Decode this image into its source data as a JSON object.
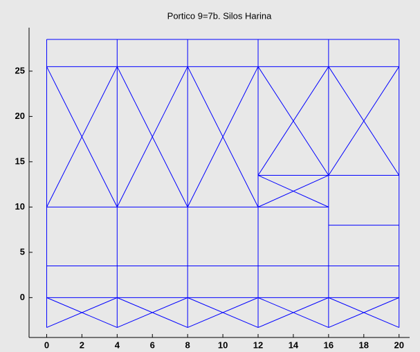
{
  "chart_data": {
    "type": "line",
    "title": "Portico 9=7b. Silos Harina",
    "color": "#0000ff",
    "xlim": [
      -1,
      20.6
    ],
    "xticks": [
      0,
      2,
      4,
      6,
      8,
      10,
      12,
      14,
      16,
      18,
      20
    ],
    "ylim": [
      -4.4,
      29.8
    ],
    "yticks": [
      0,
      5,
      10,
      15,
      20,
      25
    ],
    "series": [
      {
        "x": [
          0,
          0
        ],
        "values": [
          -3.3,
          28.5
        ]
      },
      {
        "x": [
          4,
          4
        ],
        "values": [
          -3.3,
          28.5
        ]
      },
      {
        "x": [
          8,
          8
        ],
        "values": [
          -3.3,
          28.5
        ]
      },
      {
        "x": [
          12,
          12
        ],
        "values": [
          -3.3,
          28.5
        ]
      },
      {
        "x": [
          16,
          16
        ],
        "values": [
          -3.3,
          28.5
        ]
      },
      {
        "x": [
          20,
          20
        ],
        "values": [
          -3.3,
          28.5
        ]
      },
      {
        "x": [
          0,
          20
        ],
        "values": [
          28.5,
          28.5
        ]
      },
      {
        "x": [
          0,
          20
        ],
        "values": [
          25.5,
          25.5
        ]
      },
      {
        "x": [
          0,
          16
        ],
        "values": [
          10,
          10
        ]
      },
      {
        "x": [
          12,
          20
        ],
        "values": [
          13.5,
          13.5
        ]
      },
      {
        "x": [
          16,
          20
        ],
        "values": [
          8,
          8
        ]
      },
      {
        "x": [
          0,
          20
        ],
        "values": [
          3.5,
          3.5
        ]
      },
      {
        "x": [
          0,
          20
        ],
        "values": [
          0,
          0
        ]
      },
      {
        "x": [
          0,
          4
        ],
        "values": [
          10,
          25.5
        ]
      },
      {
        "x": [
          0,
          4
        ],
        "values": [
          25.5,
          10
        ]
      },
      {
        "x": [
          4,
          8
        ],
        "values": [
          10,
          25.5
        ]
      },
      {
        "x": [
          4,
          8
        ],
        "values": [
          25.5,
          10
        ]
      },
      {
        "x": [
          8,
          12
        ],
        "values": [
          10,
          25.5
        ]
      },
      {
        "x": [
          8,
          12
        ],
        "values": [
          25.5,
          10
        ]
      },
      {
        "x": [
          12,
          16
        ],
        "values": [
          13.5,
          25.5
        ]
      },
      {
        "x": [
          12,
          16
        ],
        "values": [
          25.5,
          13.5
        ]
      },
      {
        "x": [
          16,
          20
        ],
        "values": [
          13.5,
          25.5
        ]
      },
      {
        "x": [
          16,
          20
        ],
        "values": [
          25.5,
          13.5
        ]
      },
      {
        "x": [
          12,
          16
        ],
        "values": [
          13.5,
          10
        ]
      },
      {
        "x": [
          12,
          16
        ],
        "values": [
          10,
          13.5
        ]
      },
      {
        "x": [
          0,
          4
        ],
        "values": [
          0,
          -3.3
        ]
      },
      {
        "x": [
          0,
          4
        ],
        "values": [
          -3.3,
          0
        ]
      },
      {
        "x": [
          4,
          8
        ],
        "values": [
          0,
          -3.3
        ]
      },
      {
        "x": [
          4,
          8
        ],
        "values": [
          -3.3,
          0
        ]
      },
      {
        "x": [
          8,
          12
        ],
        "values": [
          0,
          -3.3
        ]
      },
      {
        "x": [
          8,
          12
        ],
        "values": [
          -3.3,
          0
        ]
      },
      {
        "x": [
          12,
          16
        ],
        "values": [
          0,
          -3.3
        ]
      },
      {
        "x": [
          12,
          16
        ],
        "values": [
          -3.3,
          0
        ]
      },
      {
        "x": [
          16,
          20
        ],
        "values": [
          0,
          -3.3
        ]
      },
      {
        "x": [
          16,
          20
        ],
        "values": [
          -3.3,
          0
        ]
      }
    ]
  }
}
